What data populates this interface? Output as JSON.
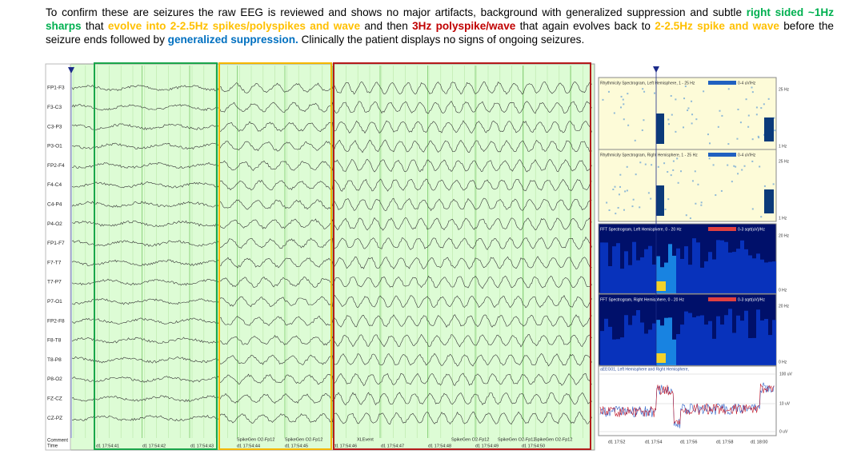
{
  "caption": {
    "segments": [
      {
        "text": "To confirm these are seizures the raw EEG is reviewed and shows no major artifacts, background with generalized suppression and subtle ",
        "color": "#000000",
        "bold": false
      },
      {
        "text": "right sided ~1Hz sharps",
        "color": "#00b050",
        "bold": true
      },
      {
        "text": " that ",
        "color": "#000000",
        "bold": false
      },
      {
        "text": "evolve into 2-2.5Hz spikes/polyspikes and wave",
        "color": "#ffc000",
        "bold": true
      },
      {
        "text": " and then ",
        "color": "#000000",
        "bold": false
      },
      {
        "text": "3Hz polyspike/wave",
        "color": "#c00000",
        "bold": true
      },
      {
        "text": " that again evolves back to ",
        "color": "#000000",
        "bold": false
      },
      {
        "text": "2-2.5Hz spike and wave",
        "color": "#ffc000",
        "bold": true
      },
      {
        "text": " before the seizure ends followed by ",
        "color": "#000000",
        "bold": false
      },
      {
        "text": "generalized suppression.",
        "color": "#0070c0",
        "bold": true
      },
      {
        "text": " Clinically the patient displays no signs of ongoing seizures.",
        "color": "#000000",
        "bold": false
      }
    ]
  },
  "eeg": {
    "channels": [
      "FP1-F3",
      "F3-C3",
      "C3-P3",
      "P3-O1",
      "FP2-F4",
      "F4-C4",
      "C4-P4",
      "P4-O2",
      "FP1-F7",
      "F7-T7",
      "T7-P7",
      "P7-O1",
      "FP2-F8",
      "F8-T8",
      "T8-P8",
      "P8-O2",
      "FZ-CZ",
      "CZ-PZ"
    ],
    "comment_label": "Comment",
    "time_label": "Time",
    "timestamps": [
      "d1 17:54:41",
      "d1 17:54:42",
      "d1 17:54:43",
      "d1 17:54:44",
      "d1 17:54:45",
      "d1 17:54:46",
      "d1 17:54:47",
      "d1 17:54:48",
      "d1 17:54:49",
      "d1 17:54:50"
    ],
    "events": [
      "SpikeGen O2-Fp12",
      "SpikeGen O2-Fp12",
      "XLEvent",
      "SpikeGen O2-Fp12",
      "SpikeGen O2-Fp12",
      "SpikeGen O2-Fp12"
    ]
  },
  "trends": {
    "panels": [
      {
        "title": "Rhythmicity Spectrogram, Left Hemisphere, 1 - 25 Hz",
        "scale": "0-4 uV/Hz",
        "top": "25 Hz",
        "bottom": "1 Hz"
      },
      {
        "title": "Rhythmicity Spectrogram, Right Hemisphere, 1 - 25 Hz",
        "scale": "0-4 uV/Hz",
        "top": "25 Hz",
        "bottom": "1 Hz"
      },
      {
        "title": "FFT Spectrogram, Left Hemisphere, 0 - 20 Hz",
        "scale": "0-3 sqrt(uV)/Hz",
        "top": "20 Hz",
        "bottom": "0 Hz"
      },
      {
        "title": "FFT Spectrogram, Right Hemisphere, 0 - 20 Hz",
        "scale": "0-3 sqrt(uV)/Hz",
        "top": "20 Hz",
        "bottom": "0 Hz"
      }
    ],
    "aeeg": {
      "title": "aEEG01, Left Hemisphere and Right Hemisphere,",
      "levels": [
        "100 uV",
        "10 uV",
        "0 uV"
      ]
    },
    "times": [
      "d1 17:52",
      "d1 17:54",
      "d1 17:56",
      "d1 17:58",
      "d1 18:00"
    ]
  }
}
